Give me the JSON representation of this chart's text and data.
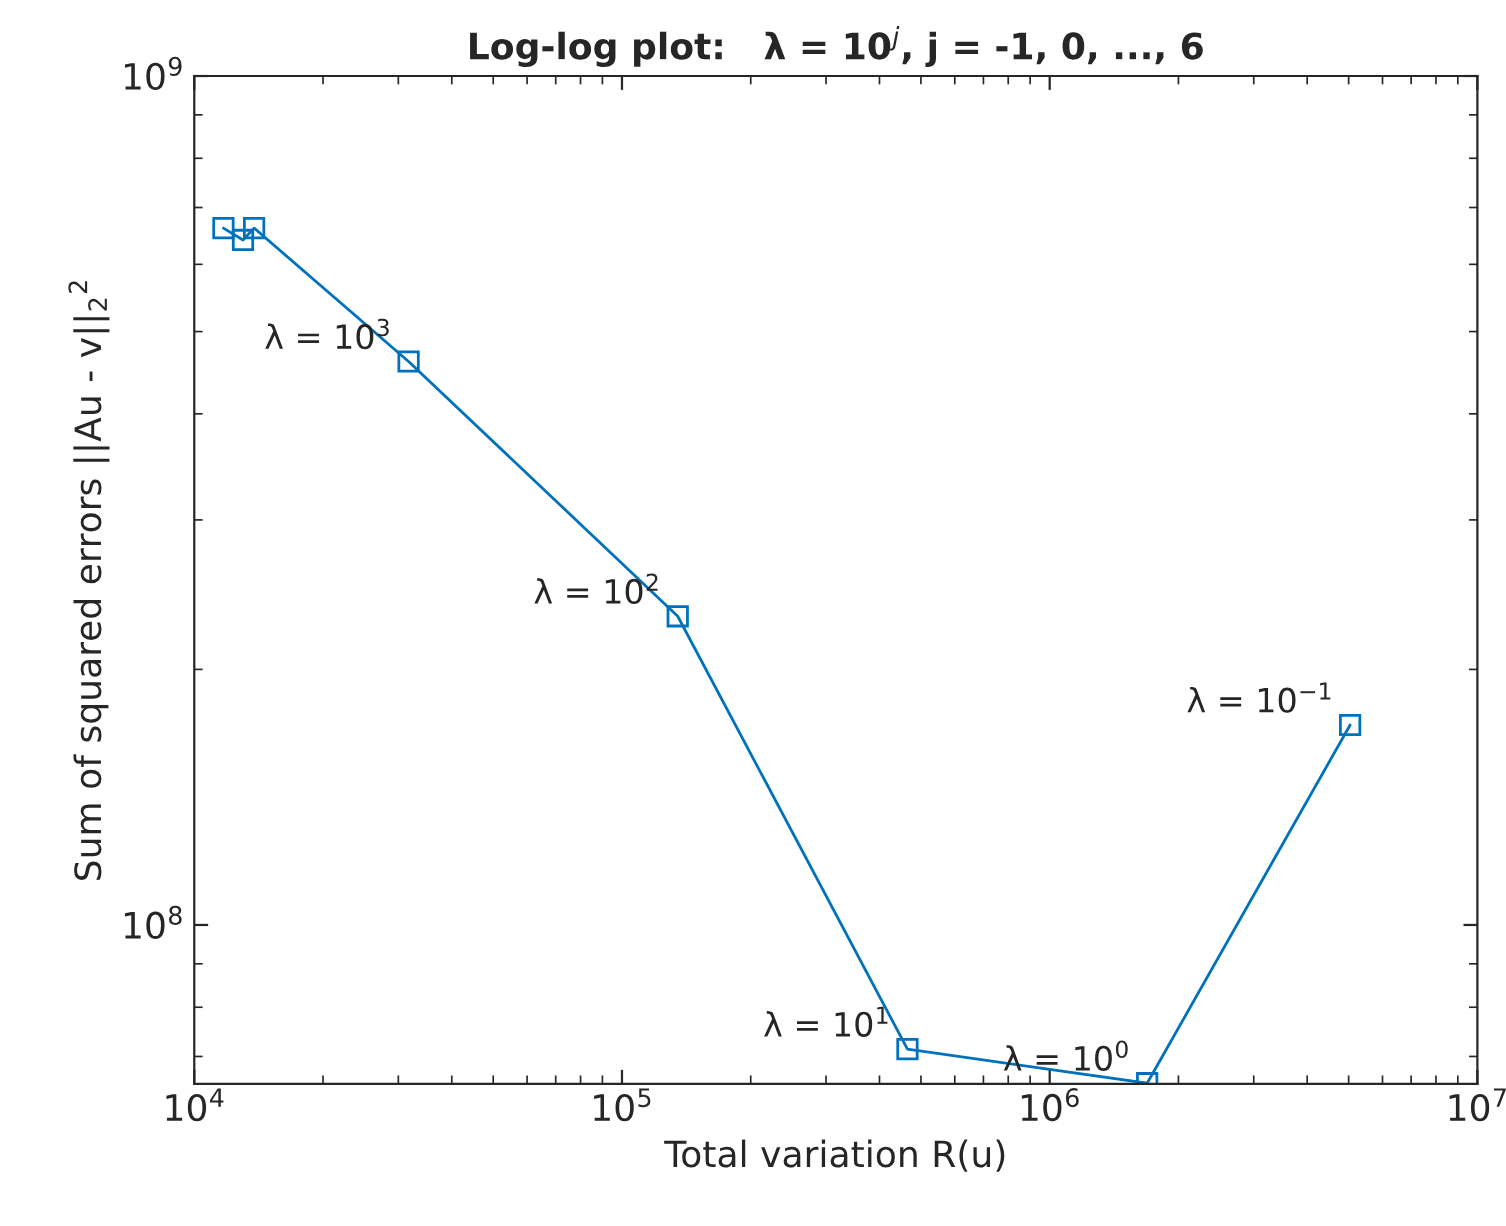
{
  "chart_data": {
    "type": "line",
    "title": "Log-log plot:   λ = 10$^{j}$, j = -1, 0, ..., 6",
    "xlabel": "Total variation R(u)",
    "ylabel": "Sum of squared errors ||Au - v||$_{2}$$^{2}$",
    "x": [
      11700,
      13000,
      13800,
      31700,
      135000,
      465000,
      1690000,
      5040000
    ],
    "series": [
      {
        "color": "#0072bd",
        "values": [
          662000000,
          641000000,
          662000000,
          461000000,
          231000000,
          71400000,
          65100000,
          172000000
        ]
      }
    ],
    "log": "xy",
    "xlim": [
      10000,
      10000000
    ],
    "ylim": [
      65000000,
      1000000000
    ],
    "xticks": [
      {
        "value": 10000,
        "label": "10$^{4}$"
      },
      {
        "value": 100000,
        "label": "10$^{5}$"
      },
      {
        "value": 1000000,
        "label": "10$^{6}$"
      },
      {
        "value": 10000000,
        "label": "10$^{7}$"
      }
    ],
    "yticks": [
      {
        "value": 100000000,
        "label": "10$^{8}$"
      },
      {
        "value": 1000000000,
        "label": "10$^{9}$"
      }
    ],
    "marker": "square",
    "line_style": "solid",
    "grid": false,
    "legend": false,
    "annotations": [
      {
        "text": "λ = 10$^{3}$",
        "x": 31700,
        "y": 461000000
      },
      {
        "text": "λ = 10$^{2}$",
        "x": 135000,
        "y": 231000000
      },
      {
        "text": "λ = 10$^{1}$",
        "x": 465000,
        "y": 71400000
      },
      {
        "text": "λ = 10$^{0}$",
        "x": 1690000,
        "y": 65100000
      },
      {
        "text": "λ = 10$^{−1}$",
        "x": 5040000,
        "y": 172000000
      }
    ]
  }
}
